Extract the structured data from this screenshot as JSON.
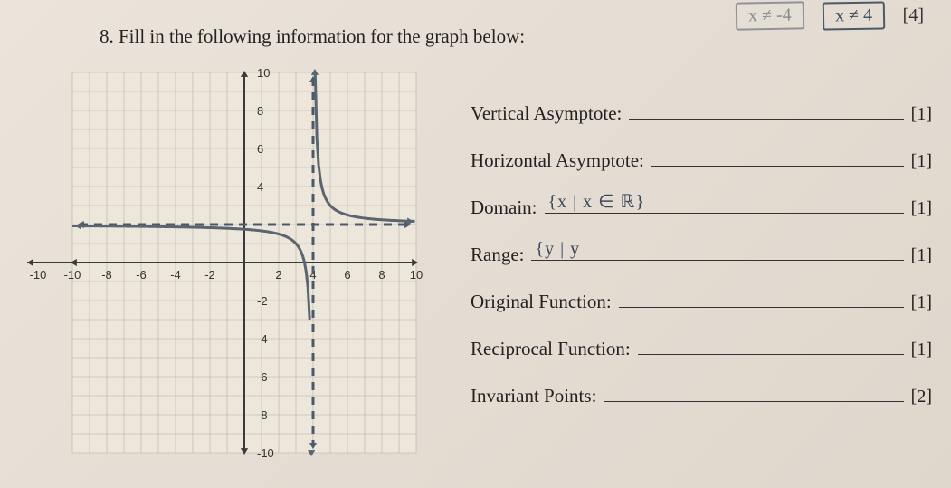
{
  "top": {
    "hand1": "x ≠ -4",
    "hand2": "x ≠ 4",
    "points": "[4]"
  },
  "question": {
    "number": "8.",
    "text": "Fill in the following information for the graph below:"
  },
  "graph": {
    "xmin": -10,
    "xmax": 10,
    "ymin": -10,
    "ymax": 10,
    "step": 2,
    "grid_color": "#b8b0a4",
    "axis_color": "#3a3a3a",
    "asymptote_v": 4,
    "asymptote_h": 2,
    "asymptote_color": "#4a5a6a",
    "curve_color": "#5a6570",
    "xticks": [
      "-10",
      "-8",
      "-6",
      "-4",
      "-2",
      "",
      "2",
      "4",
      "6",
      "8",
      "10"
    ],
    "yticks": [
      "-10",
      "-8",
      "-6",
      "-4",
      "-2",
      "",
      "4",
      "6",
      "8",
      "10"
    ]
  },
  "answers": {
    "items": [
      {
        "label": "Vertical Asymptote:",
        "value": "",
        "points": "[1]"
      },
      {
        "label": "Horizontal Asymptote:",
        "value": "",
        "points": "[1]"
      },
      {
        "label": "Domain:",
        "value": "{x | x ∈ ℝ}",
        "points": "[1]"
      },
      {
        "label": "Range:",
        "value": "{y | y",
        "points": "[1]"
      },
      {
        "label": "Original Function:",
        "value": "",
        "points": "[1]"
      },
      {
        "label": "Reciprocal Function:",
        "value": "",
        "points": "[1]"
      },
      {
        "label": "Invariant Points:",
        "value": "",
        "points": "[2]"
      }
    ]
  }
}
